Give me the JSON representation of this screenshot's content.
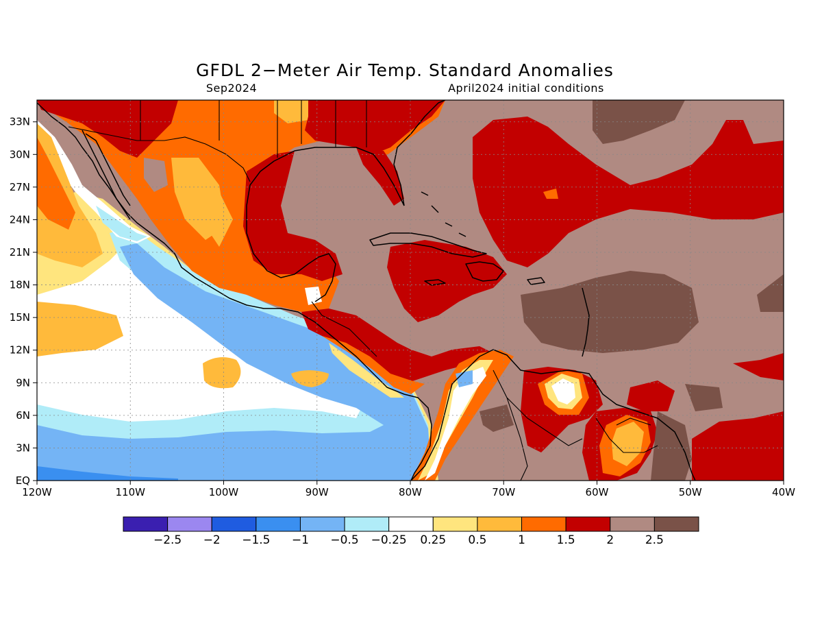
{
  "title": "GFDL 2−Meter Air Temp. Standard Anomalies",
  "subtitle_left": "Sep2024",
  "subtitle_right": "April2024 initial conditions",
  "map": {
    "lon_range": [
      -120,
      -40
    ],
    "lat_range": [
      0,
      35
    ],
    "background_value_color": "#b08a82",
    "lon_ticks": [
      {
        "value": -120,
        "label": "120W"
      },
      {
        "value": -110,
        "label": "110W"
      },
      {
        "value": -100,
        "label": "100W"
      },
      {
        "value": -90,
        "label": "90W"
      },
      {
        "value": -80,
        "label": "80W"
      },
      {
        "value": -70,
        "label": "70W"
      },
      {
        "value": -60,
        "label": "60W"
      },
      {
        "value": -50,
        "label": "50W"
      },
      {
        "value": -40,
        "label": "40W"
      }
    ],
    "lat_ticks": [
      {
        "value": 0,
        "label": "EQ"
      },
      {
        "value": 3,
        "label": "3N"
      },
      {
        "value": 6,
        "label": "6N"
      },
      {
        "value": 9,
        "label": "9N"
      },
      {
        "value": 12,
        "label": "12N"
      },
      {
        "value": 15,
        "label": "15N"
      },
      {
        "value": 18,
        "label": "18N"
      },
      {
        "value": 21,
        "label": "21N"
      },
      {
        "value": 24,
        "label": "24N"
      },
      {
        "value": 27,
        "label": "27N"
      },
      {
        "value": 30,
        "label": "30N"
      },
      {
        "value": 33,
        "label": "33N"
      }
    ]
  },
  "colorbar": {
    "colors": [
      "#3a1fb0",
      "#9b87f0",
      "#1f5ce0",
      "#3a8ff0",
      "#74b4f5",
      "#b0ecf8",
      "#ffffff",
      "#ffe57e",
      "#ffba3b",
      "#ff6b00",
      "#c20000",
      "#b08a82",
      "#7a5248"
    ],
    "labels": [
      "−2.5",
      "−2",
      "−1.5",
      "−1",
      "−0.5",
      "−0.25",
      "0.25",
      "0.5",
      "1",
      "1.5",
      "2",
      "2.5"
    ]
  }
}
